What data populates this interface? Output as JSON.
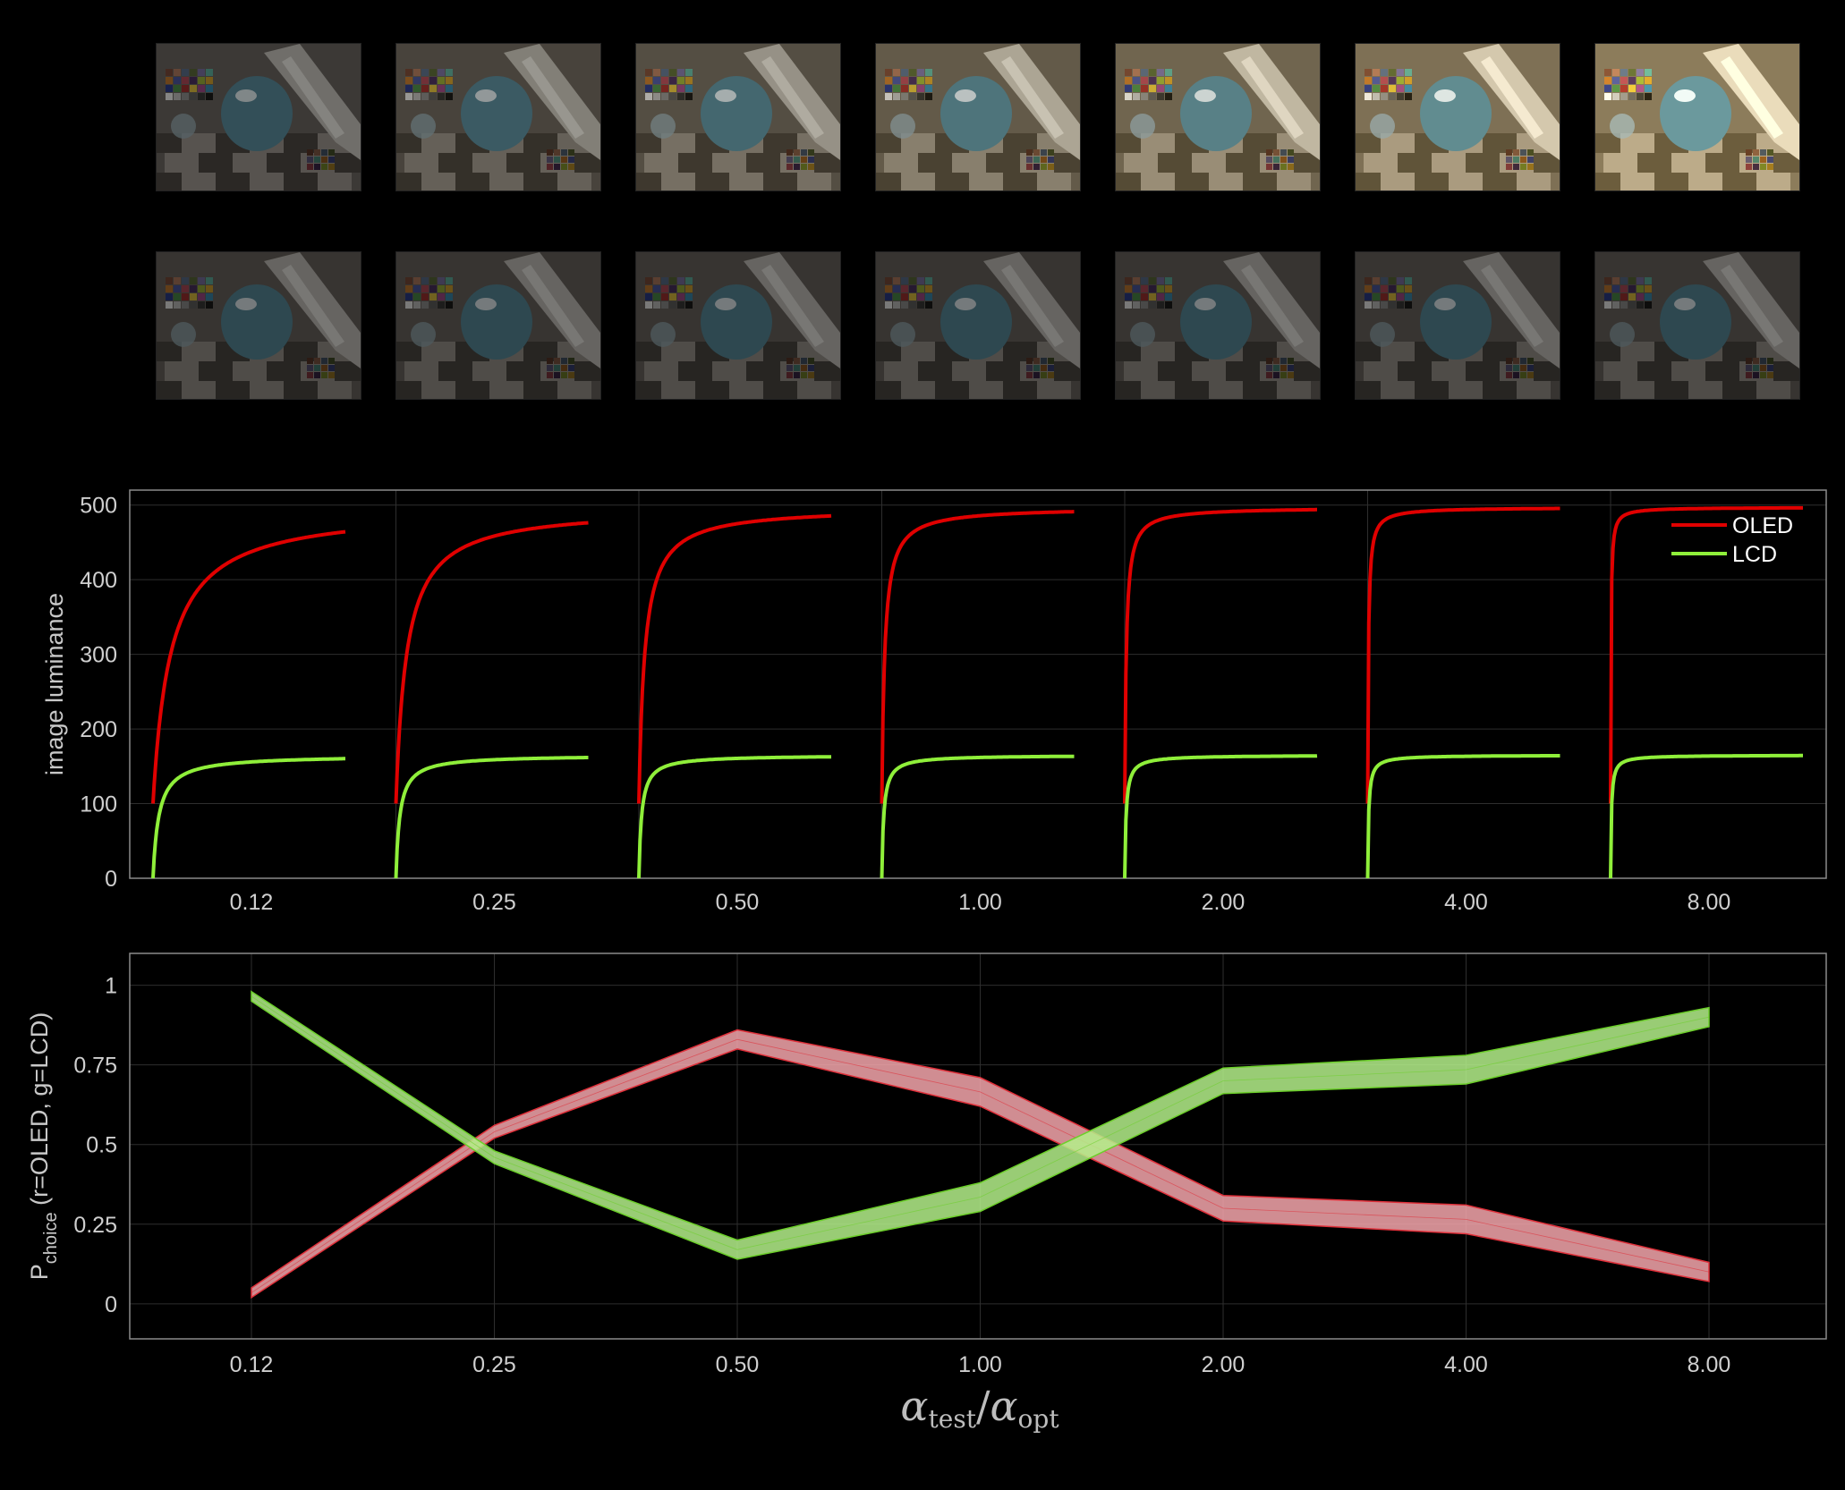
{
  "thumbnails": {
    "rows": [
      {
        "name": "oled-renderings",
        "items": [
          {
            "warmth": 0.05,
            "brightness": 0.55
          },
          {
            "warmth": 0.15,
            "brightness": 0.62
          },
          {
            "warmth": 0.25,
            "brightness": 0.7
          },
          {
            "warmth": 0.4,
            "brightness": 0.78
          },
          {
            "warmth": 0.55,
            "brightness": 0.85
          },
          {
            "warmth": 0.7,
            "brightness": 0.92
          },
          {
            "warmth": 0.85,
            "brightness": 1.0
          }
        ]
      },
      {
        "name": "lcd-renderings",
        "items": [
          {
            "warmth": 0.05,
            "brightness": 0.5
          },
          {
            "warmth": 0.05,
            "brightness": 0.5
          },
          {
            "warmth": 0.05,
            "brightness": 0.5
          },
          {
            "warmth": 0.05,
            "brightness": 0.5
          },
          {
            "warmth": 0.05,
            "brightness": 0.5
          },
          {
            "warmth": 0.05,
            "brightness": 0.5
          },
          {
            "warmth": 0.05,
            "brightness": 0.5
          }
        ]
      }
    ]
  },
  "colors": {
    "oled": "#e00000",
    "lcd": "#8fef3a",
    "oled_band": "#f4a6ac",
    "oled_band_edge": "#e0303a",
    "lcd_band": "#b4f08a",
    "lcd_band_edge": "#6ccf2a",
    "grid": "#2e2e2e",
    "frame": "#8a8a8a"
  },
  "x_axis_title": {
    "main_left": "α",
    "sub_left": "test",
    "slash": "/",
    "main_right": "α",
    "sub_right": "opt"
  },
  "chart_data": [
    {
      "type": "line",
      "ylabel": "image luminance",
      "ylim": [
        0,
        520
      ],
      "yticks": [
        0,
        100,
        200,
        300,
        400,
        500
      ],
      "categories": [
        "0.12",
        "0.25",
        "0.50",
        "1.00",
        "2.00",
        "4.00",
        "8.00"
      ],
      "legend": {
        "position": "top-right",
        "entries": [
          "OLED",
          "LCD"
        ]
      },
      "grid": true,
      "series": [
        {
          "name": "OLED",
          "asymptote": 497,
          "start": 100,
          "rise_scale": [
            0.09,
            0.055,
            0.03,
            0.015,
            0.008,
            0.004,
            0.002
          ]
        },
        {
          "name": "LCD",
          "asymptote": 165,
          "start": 0,
          "rise_scale": [
            0.03,
            0.02,
            0.014,
            0.01,
            0.007,
            0.005,
            0.004
          ]
        }
      ]
    },
    {
      "type": "area",
      "ylabel_main": "P",
      "ylabel_sub": "choice",
      "ylabel_rest": " (r=OLED, g=LCD)",
      "ylim": [
        -0.11,
        1.1
      ],
      "yticks": [
        0,
        0.25,
        0.5,
        0.75,
        1
      ],
      "ytick_labels": [
        "0",
        "0.25",
        "0.5",
        "0.75",
        "1"
      ],
      "categories": [
        "0.12",
        "0.25",
        "0.50",
        "1.00",
        "2.00",
        "4.00",
        "8.00"
      ],
      "grid": true,
      "series": [
        {
          "name": "OLED",
          "lower": [
            0.02,
            0.52,
            0.8,
            0.62,
            0.26,
            0.22,
            0.07
          ],
          "upper": [
            0.05,
            0.56,
            0.86,
            0.71,
            0.34,
            0.31,
            0.13
          ]
        },
        {
          "name": "LCD",
          "lower": [
            0.95,
            0.44,
            0.14,
            0.29,
            0.66,
            0.69,
            0.87
          ],
          "upper": [
            0.98,
            0.48,
            0.2,
            0.38,
            0.74,
            0.78,
            0.93
          ]
        }
      ]
    }
  ]
}
